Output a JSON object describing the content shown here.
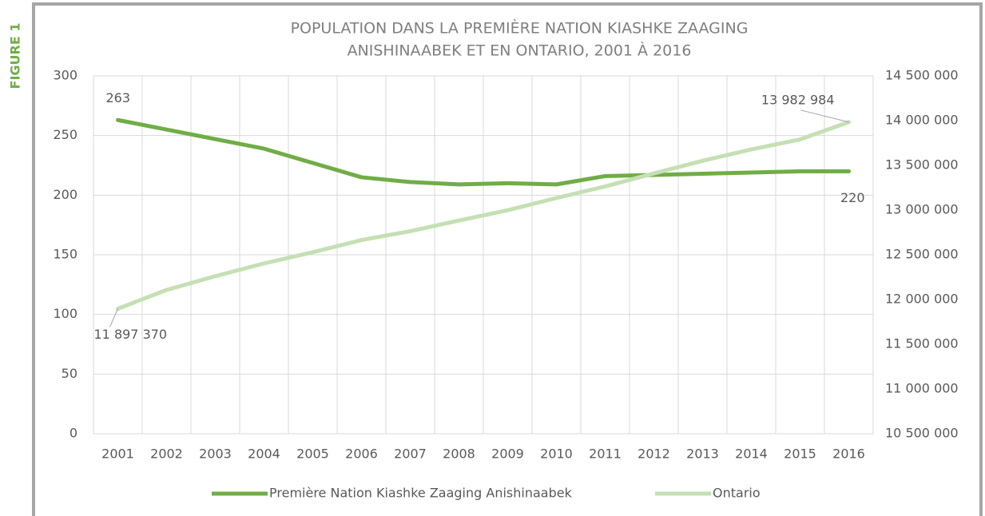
{
  "figure_label": "FIGURE 1",
  "chart_data": {
    "type": "line",
    "title": [
      "POPULATION DANS LA PREMIÈRE NATION KIASHKE ZAAGING",
      "ANISHINAABEK ET EN ONTARIO, 2001 À 2016"
    ],
    "categories": [
      "2001",
      "2002",
      "2003",
      "2004",
      "2005",
      "2006",
      "2007",
      "2008",
      "2009",
      "2010",
      "2011",
      "2012",
      "2013",
      "2014",
      "2015",
      "2016"
    ],
    "series": [
      {
        "name": "Première Nation Kiashke Zaaging Anishinaabek",
        "color": "#70ad47",
        "axis": "y",
        "values": [
          263,
          255,
          247,
          239,
          227,
          215,
          211,
          209,
          210,
          209,
          216,
          217,
          218,
          219,
          220,
          220
        ],
        "labeled": [
          0,
          15
        ]
      },
      {
        "name": "Ontario",
        "color": "#c5e0b4",
        "axis": "y2",
        "values": [
          11897370,
          12107000,
          12261000,
          12404000,
          12529000,
          12665000,
          12764000,
          12883000,
          12998000,
          13135000,
          13264000,
          13410000,
          13551000,
          13678000,
          13790000,
          13982984
        ],
        "value_labels": [
          "11 897 370",
          null,
          null,
          null,
          null,
          null,
          null,
          null,
          null,
          null,
          null,
          null,
          null,
          null,
          null,
          "13 982 984"
        ]
      }
    ],
    "ylim": [
      0,
      300
    ],
    "yticks": [
      0,
      50,
      100,
      150,
      200,
      250,
      300
    ],
    "y2lim": [
      10500000,
      14500000
    ],
    "y2ticks": [
      {
        "value": 10500000,
        "label": "10 500 000"
      },
      {
        "value": 11000000,
        "label": "11 000 000"
      },
      {
        "value": 11500000,
        "label": "11 500 000"
      },
      {
        "value": 12000000,
        "label": "12 000 000"
      },
      {
        "value": 12500000,
        "label": "12 500 000"
      },
      {
        "value": 13000000,
        "label": "13 000 000"
      },
      {
        "value": 13500000,
        "label": "13 500 000"
      },
      {
        "value": 14000000,
        "label": "14 000 000"
      },
      {
        "value": 14500000,
        "label": "14 500 000"
      }
    ],
    "grid": true,
    "legend": "bottom"
  }
}
